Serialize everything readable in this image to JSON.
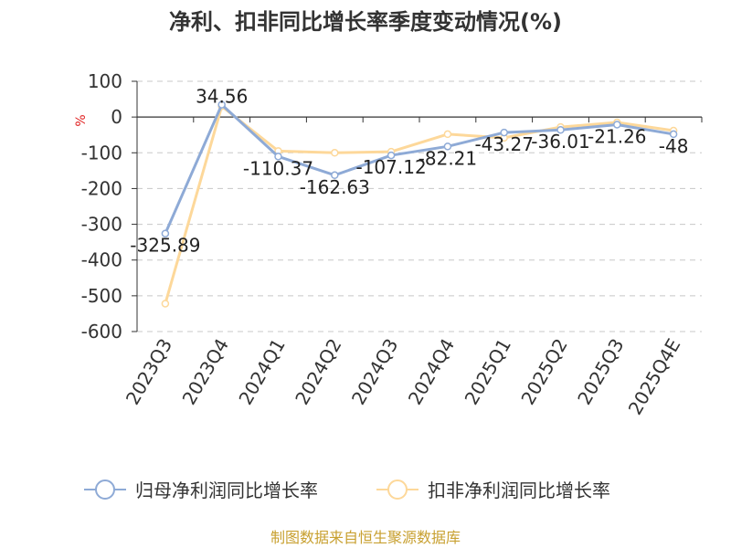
{
  "chart_data": {
    "type": "line",
    "title": "净利、扣非同比增长率季度变动情况(%)",
    "ylabel": "%",
    "categories": [
      "2023Q3",
      "2023Q4",
      "2024Q1",
      "2024Q2",
      "2024Q3",
      "2024Q4",
      "2025Q1",
      "2025Q2",
      "2025Q3",
      "2025Q4E"
    ],
    "ylim": [
      -600,
      100
    ],
    "yticks": [
      100,
      0,
      -100,
      -200,
      -300,
      -400,
      -500,
      -600
    ],
    "grid": true,
    "legend_position": "bottom",
    "series": [
      {
        "name": "归母净利润同比增长率",
        "color": "#8eaad6",
        "values": [
          -325.89,
          34.56,
          -110.37,
          -162.63,
          -107.12,
          -82.21,
          -43.27,
          -36.01,
          -21.26,
          -48
        ],
        "labels": [
          "-325.89",
          "34.56",
          "-110.37",
          "-162.63",
          "-107.12",
          "-82.21",
          "-43.27",
          "-36.01",
          "-21.26",
          "-48"
        ]
      },
      {
        "name": "扣非净利润同比增长率",
        "color": "#fdd89a",
        "values": [
          -522,
          30,
          -95,
          -100,
          -97,
          -48,
          -58,
          -28,
          -15,
          -38
        ]
      }
    ]
  },
  "source": "制图数据来自恒生聚源数据库"
}
